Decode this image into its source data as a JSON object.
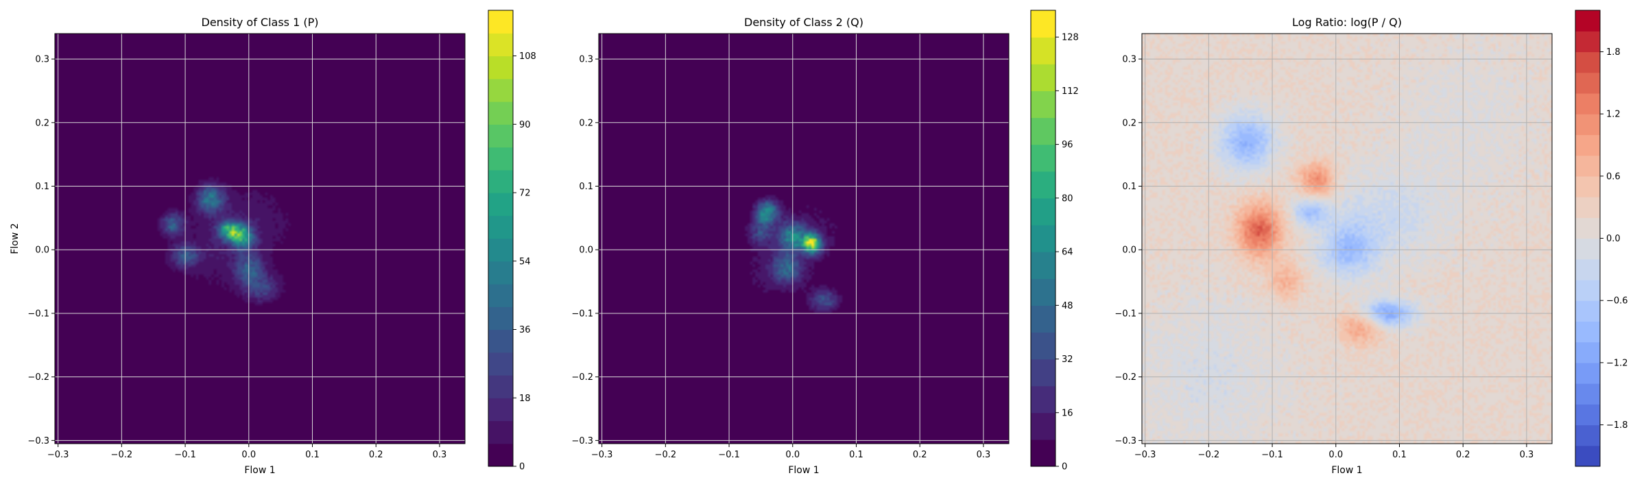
{
  "chart_data": [
    {
      "type": "heatmap",
      "title": "Density of Class 1 (P)",
      "xlabel": "Flow 1",
      "ylabel": "Flow 2",
      "xlim": [
        -0.305,
        0.34
      ],
      "ylim": [
        -0.305,
        0.34
      ],
      "xticks": [
        -0.3,
        -0.2,
        -0.1,
        0.0,
        0.1,
        0.2,
        0.3
      ],
      "xtick_labels": [
        "−0.3",
        "−0.2",
        "−0.1",
        "0.0",
        "0.1",
        "0.2",
        "0.3"
      ],
      "yticks": [
        -0.3,
        -0.2,
        -0.1,
        0.0,
        0.1,
        0.2,
        0.3
      ],
      "ytick_labels": [
        "−0.3",
        "−0.2",
        "−0.1",
        "0.0",
        "0.1",
        "0.2",
        "0.3"
      ],
      "grid": true,
      "colormap": "viridis",
      "colorbar": {
        "range": [
          0,
          120
        ],
        "levels": 20,
        "ticks": [
          0,
          18,
          36,
          54,
          72,
          90,
          108
        ],
        "tick_labels": [
          "0",
          "18",
          "36",
          "54",
          "72",
          "90",
          "108"
        ]
      },
      "blobs": [
        {
          "x": -0.02,
          "y": 0.02,
          "sx": 0.07,
          "sy": 0.05,
          "rot": -0.6,
          "amp": 12
        },
        {
          "x": -0.03,
          "y": 0.03,
          "sx": 0.012,
          "sy": 0.01,
          "amp": 70
        },
        {
          "x": -0.01,
          "y": 0.02,
          "sx": 0.012,
          "sy": 0.012,
          "amp": 60
        },
        {
          "x": -0.06,
          "y": 0.08,
          "sx": 0.015,
          "sy": 0.015,
          "amp": 45
        },
        {
          "x": -0.12,
          "y": 0.04,
          "sx": 0.012,
          "sy": 0.012,
          "amp": 35
        },
        {
          "x": -0.1,
          "y": -0.01,
          "sx": 0.015,
          "sy": 0.012,
          "amp": 30
        },
        {
          "x": 0.0,
          "y": -0.03,
          "sx": 0.015,
          "sy": 0.015,
          "amp": 30
        },
        {
          "x": 0.02,
          "y": -0.06,
          "sx": 0.02,
          "sy": 0.015,
          "amp": 25
        }
      ]
    },
    {
      "type": "heatmap",
      "title": "Density of Class 2 (Q)",
      "xlabel": "Flow 1",
      "ylabel": "",
      "xlim": [
        -0.305,
        0.34
      ],
      "ylim": [
        -0.305,
        0.34
      ],
      "xticks": [
        -0.3,
        -0.2,
        -0.1,
        0.0,
        0.1,
        0.2,
        0.3
      ],
      "xtick_labels": [
        "−0.3",
        "−0.2",
        "−0.1",
        "0.0",
        "0.1",
        "0.2",
        "0.3"
      ],
      "yticks": [
        -0.3,
        -0.2,
        -0.1,
        0.0,
        0.1,
        0.2,
        0.3
      ],
      "ytick_labels": [
        "−0.3",
        "−0.2",
        "−0.1",
        "0.0",
        "0.1",
        "0.2",
        "0.3"
      ],
      "grid": true,
      "colormap": "viridis",
      "colorbar": {
        "range": [
          0,
          136
        ],
        "levels": 17,
        "ticks": [
          0,
          16,
          32,
          48,
          64,
          80,
          96,
          112,
          128
        ],
        "tick_labels": [
          "0",
          "16",
          "32",
          "48",
          "64",
          "80",
          "96",
          "112",
          "128"
        ]
      },
      "blobs": [
        {
          "x": 0.0,
          "y": 0.0,
          "sx": 0.075,
          "sy": 0.045,
          "rot": -0.75,
          "amp": 12
        },
        {
          "x": -0.04,
          "y": 0.06,
          "sx": 0.012,
          "sy": 0.012,
          "amp": 65
        },
        {
          "x": 0.03,
          "y": 0.01,
          "sx": 0.01,
          "sy": 0.01,
          "amp": 110
        },
        {
          "x": 0.0,
          "y": 0.02,
          "sx": 0.015,
          "sy": 0.015,
          "amp": 55
        },
        {
          "x": -0.01,
          "y": -0.03,
          "sx": 0.015,
          "sy": 0.015,
          "amp": 40
        },
        {
          "x": 0.05,
          "y": -0.08,
          "sx": 0.015,
          "sy": 0.012,
          "amp": 35
        },
        {
          "x": -0.05,
          "y": 0.03,
          "sx": 0.012,
          "sy": 0.015,
          "amp": 30
        }
      ]
    },
    {
      "type": "heatmap",
      "title": "Log Ratio: log(P / Q)",
      "xlabel": "Flow 1",
      "ylabel": "",
      "xlim": [
        -0.305,
        0.34
      ],
      "ylim": [
        -0.305,
        0.34
      ],
      "xticks": [
        -0.3,
        -0.2,
        -0.1,
        0.0,
        0.1,
        0.2,
        0.3
      ],
      "xtick_labels": [
        "−0.3",
        "−0.2",
        "−0.1",
        "0.0",
        "0.1",
        "0.2",
        "0.3"
      ],
      "yticks": [
        -0.3,
        -0.2,
        -0.1,
        0.0,
        0.1,
        0.2,
        0.3
      ],
      "ytick_labels": [
        "−0.3",
        "−0.2",
        "−0.1",
        "0.0",
        "0.1",
        "0.2",
        "0.3"
      ],
      "grid": true,
      "colormap": "coolwarm",
      "colorbar": {
        "range": [
          -2.2,
          2.2
        ],
        "levels": 22,
        "ticks": [
          -1.8,
          -1.2,
          -0.6,
          0.0,
          0.6,
          1.2,
          1.8
        ],
        "tick_labels": [
          "−1.8",
          "−1.2",
          "−0.6",
          "0.0",
          "0.6",
          "1.2",
          "1.8"
        ]
      },
      "background": 0.15,
      "blobs": [
        {
          "x": -0.12,
          "y": 0.03,
          "sx": 0.025,
          "sy": 0.03,
          "amp": 1.4
        },
        {
          "x": -0.03,
          "y": 0.11,
          "sx": 0.02,
          "sy": 0.02,
          "amp": 1.0
        },
        {
          "x": 0.04,
          "y": -0.12,
          "sx": 0.025,
          "sy": 0.02,
          "amp": 0.8
        },
        {
          "x": -0.08,
          "y": -0.05,
          "sx": 0.02,
          "sy": 0.02,
          "amp": 0.6
        },
        {
          "x": -0.14,
          "y": 0.17,
          "sx": 0.03,
          "sy": 0.03,
          "amp": -1.1
        },
        {
          "x": 0.08,
          "y": -0.1,
          "sx": 0.03,
          "sy": 0.015,
          "amp": -1.3
        },
        {
          "x": 0.02,
          "y": 0.0,
          "sx": 0.03,
          "sy": 0.03,
          "amp": -0.9
        },
        {
          "x": -0.04,
          "y": 0.06,
          "sx": 0.02,
          "sy": 0.015,
          "amp": -0.9
        },
        {
          "x": 0.08,
          "y": 0.05,
          "sx": 0.06,
          "sy": 0.05,
          "amp": -0.4
        },
        {
          "x": -0.2,
          "y": -0.2,
          "sx": 0.08,
          "sy": 0.08,
          "amp": -0.25
        },
        {
          "x": 0.2,
          "y": 0.2,
          "sx": 0.08,
          "sy": 0.08,
          "amp": -0.15
        }
      ]
    }
  ]
}
